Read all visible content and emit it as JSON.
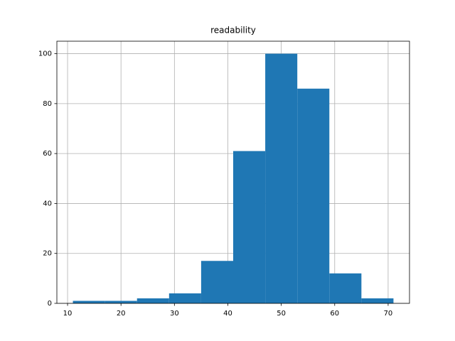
{
  "chart_data": {
    "type": "histogram",
    "title": "readability",
    "bins": [
      11,
      17,
      23,
      29,
      35,
      41,
      47,
      53,
      59,
      65,
      71
    ],
    "values": [
      1,
      1,
      2,
      4,
      17,
      61,
      100,
      86,
      12,
      2
    ],
    "color": "#1f77b4",
    "xlim": [
      8,
      74
    ],
    "xticks": [
      10,
      20,
      30,
      40,
      50,
      60,
      70
    ],
    "ylim": [
      0,
      105
    ],
    "yticks": [
      0,
      20,
      40,
      60,
      80,
      100
    ],
    "grid": true
  }
}
